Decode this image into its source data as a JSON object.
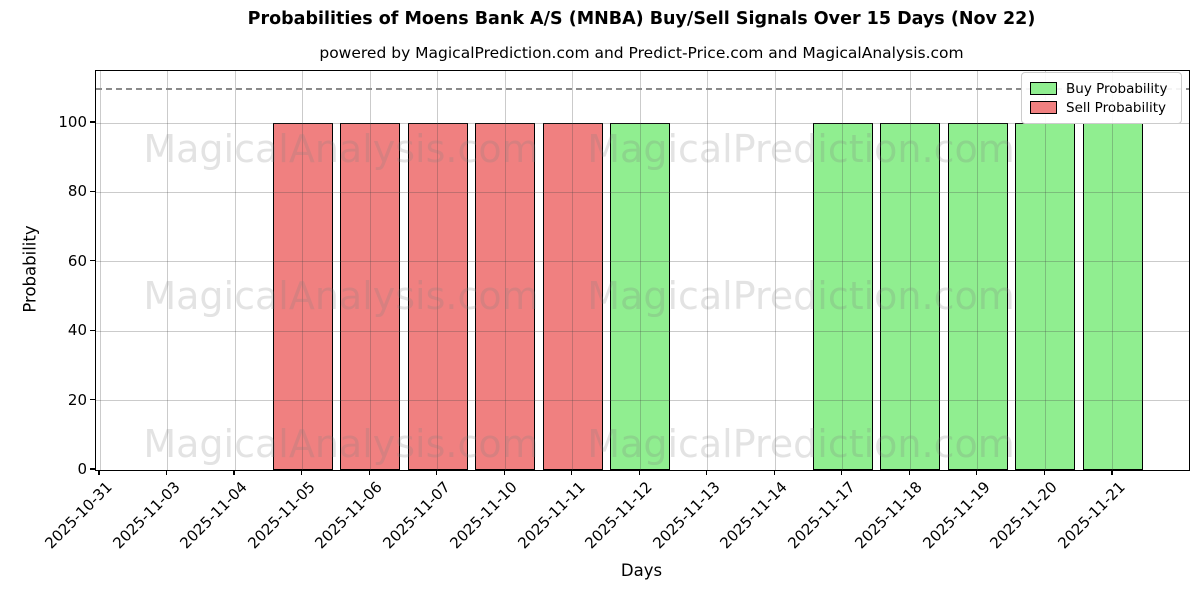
{
  "chart_data": {
    "type": "bar",
    "title": "Probabilities of Moens Bank A/S (MNBA) Buy/Sell Signals Over 15 Days (Nov 22)",
    "subtitle": "powered by MagicalPrediction.com and Predict-Price.com and MagicalAnalysis.com",
    "xlabel": "Days",
    "ylabel": "Probability",
    "ylim": [
      0,
      115
    ],
    "yticks": [
      0,
      20,
      40,
      60,
      80,
      100
    ],
    "threshold_y": 110,
    "grid": true,
    "legend_position": "top-right",
    "categories": [
      "2025-10-31",
      "2025-11-03",
      "2025-11-04",
      "2025-11-05",
      "2025-11-06",
      "2025-11-07",
      "2025-11-10",
      "2025-11-11",
      "2025-11-12",
      "2025-11-13",
      "2025-11-14",
      "2025-11-17",
      "2025-11-18",
      "2025-11-19",
      "2025-11-20",
      "2025-11-21"
    ],
    "series": [
      {
        "name": "Buy Probability",
        "color": "#90ee90",
        "values": [
          0,
          0,
          0,
          0,
          0,
          0,
          0,
          0,
          100,
          0,
          0,
          100,
          100,
          100,
          100,
          100
        ]
      },
      {
        "name": "Sell Probability",
        "color": "#f08080",
        "values": [
          0,
          0,
          0,
          100,
          100,
          100,
          100,
          100,
          0,
          0,
          0,
          0,
          0,
          0,
          0,
          0
        ]
      }
    ],
    "watermarks": [
      "MagicalAnalysis.com",
      "MagicalPrediction.com"
    ],
    "colors": {
      "bar_edge": "#000000",
      "grid": "#c3c3c3",
      "threshold": "#8a8a8a",
      "watermark": "#e3e3e3",
      "axis": "#000000",
      "background": "#ffffff"
    }
  }
}
